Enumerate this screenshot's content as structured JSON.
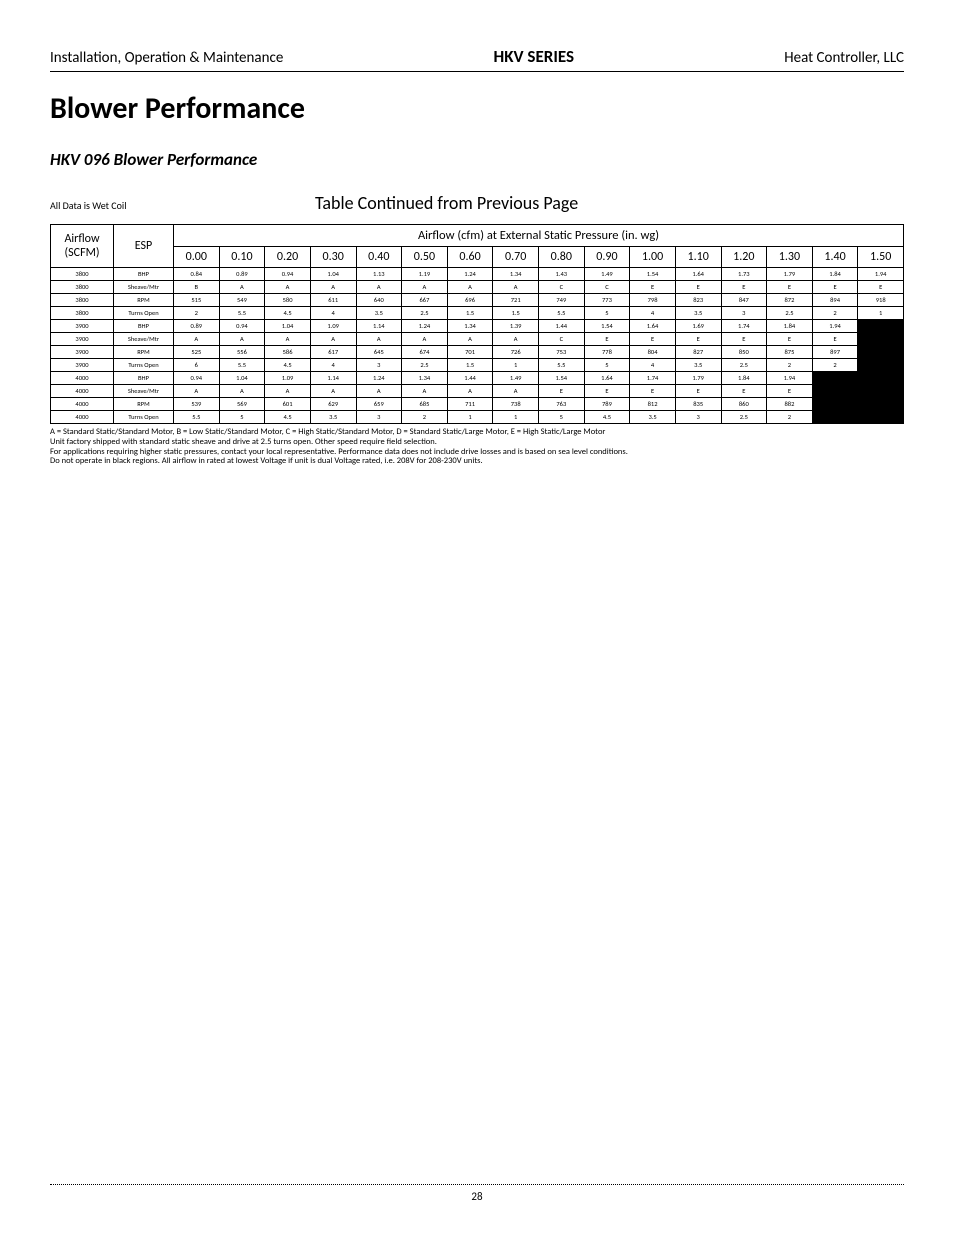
{
  "header": {
    "left": "Installation, Operation & Maintenance",
    "center": "HKV SERIES",
    "right": "Heat Controller, LLC"
  },
  "title": "Blower Performance",
  "subtitle": "HKV 096 Blower Performance",
  "wet_coil_note": "All Data is Wet Coil",
  "continued_note": "Table Continued from Previous Page",
  "table": {
    "col1_header_line1": "Airflow",
    "col1_header_line2": "(SCFM)",
    "col2_header": "ESP",
    "span_header": "Airflow (cfm) at External Static Pressure (in. wg)",
    "pressure_cols": [
      "0.00",
      "0.10",
      "0.20",
      "0.30",
      "0.40",
      "0.50",
      "0.60",
      "0.70",
      "0.80",
      "0.90",
      "1.00",
      "1.10",
      "1.20",
      "1.30",
      "1.40",
      "1.50"
    ],
    "rows": [
      {
        "scfm": "3800",
        "esp": "BHP",
        "v": [
          "0.84",
          "0.89",
          "0.94",
          "1.04",
          "1.13",
          "1.19",
          "1.24",
          "1.34",
          "1.43",
          "1.49",
          "1.54",
          "1.64",
          "1.73",
          "1.79",
          "1.84",
          "1.94"
        ],
        "black": []
      },
      {
        "scfm": "3800",
        "esp": "Sheave/Mtr",
        "v": [
          "B",
          "A",
          "A",
          "A",
          "A",
          "A",
          "A",
          "A",
          "C",
          "C",
          "E",
          "E",
          "E",
          "E",
          "E",
          "E"
        ],
        "black": []
      },
      {
        "scfm": "3800",
        "esp": "RPM",
        "v": [
          "515",
          "549",
          "580",
          "611",
          "640",
          "667",
          "696",
          "721",
          "749",
          "773",
          "798",
          "823",
          "847",
          "872",
          "894",
          "918"
        ],
        "black": []
      },
      {
        "scfm": "3800",
        "esp": "Turns Open",
        "v": [
          "2",
          "5.5",
          "4.5",
          "4",
          "3.5",
          "2.5",
          "1.5",
          "1.5",
          "5.5",
          "5",
          "4",
          "3.5",
          "3",
          "2.5",
          "2",
          "1"
        ],
        "black": []
      },
      {
        "scfm": "3900",
        "esp": "BHP",
        "v": [
          "0.89",
          "0.94",
          "1.04",
          "1.09",
          "1.14",
          "1.24",
          "1.34",
          "1.39",
          "1.44",
          "1.54",
          "1.64",
          "1.69",
          "1.74",
          "1.84",
          "1.94",
          ""
        ],
        "black": [
          15
        ]
      },
      {
        "scfm": "3900",
        "esp": "Sheave/Mtr",
        "v": [
          "A",
          "A",
          "A",
          "A",
          "A",
          "A",
          "A",
          "A",
          "C",
          "E",
          "E",
          "E",
          "E",
          "E",
          "E",
          ""
        ],
        "black": [
          15
        ]
      },
      {
        "scfm": "3900",
        "esp": "RPM",
        "v": [
          "525",
          "556",
          "586",
          "617",
          "645",
          "674",
          "701",
          "726",
          "753",
          "778",
          "804",
          "827",
          "850",
          "875",
          "897",
          ""
        ],
        "black": [
          15
        ]
      },
      {
        "scfm": "3900",
        "esp": "Turns Open",
        "v": [
          "6",
          "5.5",
          "4.5",
          "4",
          "3",
          "2.5",
          "1.5",
          "1",
          "5.5",
          "5",
          "4",
          "3.5",
          "2.5",
          "2",
          "2",
          ""
        ],
        "black": [
          15
        ]
      },
      {
        "scfm": "4000",
        "esp": "BHP",
        "v": [
          "0.94",
          "1.04",
          "1.09",
          "1.14",
          "1.24",
          "1.34",
          "1.44",
          "1.49",
          "1.54",
          "1.64",
          "1.74",
          "1.79",
          "1.84",
          "1.94",
          "",
          ""
        ],
        "black": [
          14,
          15
        ]
      },
      {
        "scfm": "4000",
        "esp": "Sheave/Mtr",
        "v": [
          "A",
          "A",
          "A",
          "A",
          "A",
          "A",
          "A",
          "A",
          "E",
          "E",
          "E",
          "E",
          "E",
          "E",
          "",
          ""
        ],
        "black": [
          14,
          15
        ]
      },
      {
        "scfm": "4000",
        "esp": "RPM",
        "v": [
          "539",
          "569",
          "601",
          "629",
          "659",
          "685",
          "711",
          "738",
          "763",
          "789",
          "812",
          "835",
          "860",
          "882",
          "",
          ""
        ],
        "black": [
          14,
          15
        ]
      },
      {
        "scfm": "4000",
        "esp": "Turns Open",
        "v": [
          "5.5",
          "5",
          "4.5",
          "3.5",
          "3",
          "2",
          "1",
          "1",
          "5",
          "4.5",
          "3.5",
          "3",
          "2.5",
          "2",
          "",
          ""
        ],
        "black": [
          14,
          15
        ]
      }
    ]
  },
  "footnotes": [
    "A = Standard Static/Standard Motor, B = Low Static/Standard Motor, C = High Static/Standard Motor, D = Standard Static/Large Motor, E = High Static/Large Motor",
    "Unit factory shipped with standard static sheave and drive at 2.5 turns open. Other speed require field selection.",
    "For applications requiring higher static pressures, contact your local representative. Performance data does not include drive losses and is based on sea level conditions.",
    "Do not operate in black regions. All airflow in rated at lowest Voltage if unit is dual Voltage rated, i.e. 208V for 208-230V units."
  ],
  "page_number": "28"
}
